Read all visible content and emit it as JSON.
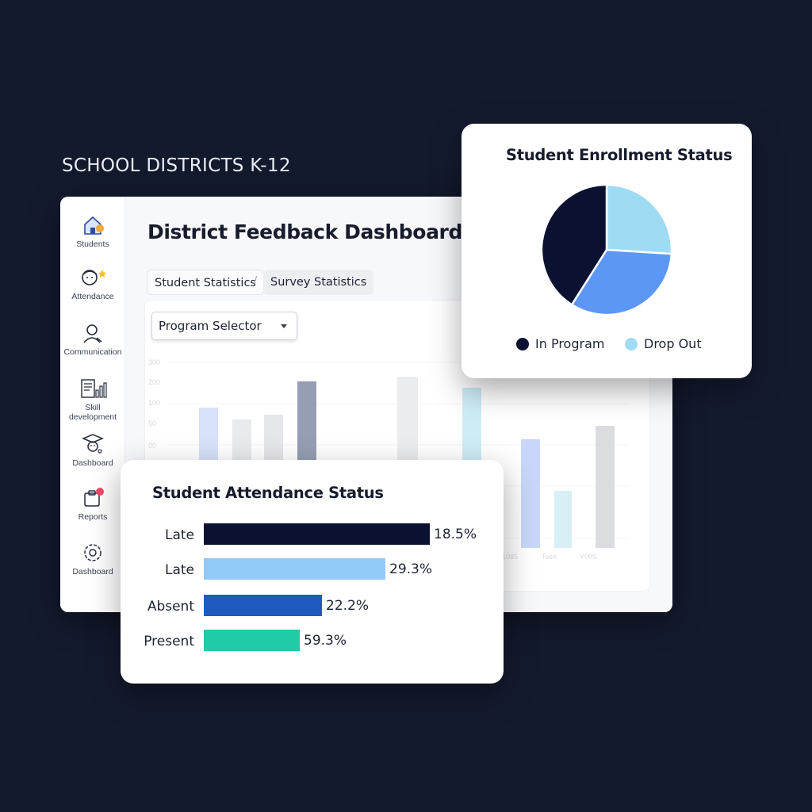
{
  "brand": {
    "label": "SCHOOL DISTRICTS K-12"
  },
  "sidebar": {
    "items": [
      {
        "label": "Students",
        "icon": "school-building-icon"
      },
      {
        "label": "Attendance",
        "icon": "student-face-icon"
      },
      {
        "label": "Communication",
        "icon": "person-chat-icon"
      },
      {
        "label": "Skill development",
        "icon": "document-chart-icon"
      },
      {
        "label": "Dashboard",
        "icon": "graduation-cap-icon"
      },
      {
        "label": "Reports",
        "icon": "clipboard-icon"
      },
      {
        "label": "Dashboard",
        "icon": "gear-badge-icon"
      }
    ]
  },
  "header": {
    "title": "District Feedback Dashboard"
  },
  "tabs": [
    {
      "label": "Student Statistics"
    },
    {
      "label": "Survey Statistics"
    }
  ],
  "tab_separator": "/",
  "program_selector": {
    "value": "Program Selector"
  },
  "background_chart": {
    "y_ticks": [
      "300",
      "200",
      "100",
      "50",
      "00"
    ],
    "x_labels": [
      "1085",
      "Tsen",
      "Y00S"
    ]
  },
  "chart_data": [
    {
      "type": "pie",
      "title": "Student Enrollment Status",
      "slices": [
        {
          "label": "Drop Out",
          "value": 26,
          "color": "#9fdcf4"
        },
        {
          "label": "",
          "value": 33,
          "color": "#5c97f5"
        },
        {
          "label": "In Program",
          "value": 41,
          "color": "#0b1130"
        }
      ],
      "legend": [
        {
          "label": "In Program",
          "color": "#0b1130"
        },
        {
          "label": "Drop Out",
          "color": "#9fdcf4"
        }
      ],
      "legend_position": "bottom"
    },
    {
      "type": "bar",
      "orientation": "horizontal",
      "title": "Student Attendance Status",
      "categories": [
        "Late",
        "Late",
        "Absent",
        "Present"
      ],
      "values": [
        18.5,
        29.3,
        22.2,
        59.3
      ],
      "value_labels": [
        "18.5%",
        "29.3%",
        "22.2%",
        "59.3%"
      ],
      "colors": [
        "#0b1130",
        "#93c9f7",
        "#1d5bbf",
        "#22cba7"
      ]
    }
  ]
}
